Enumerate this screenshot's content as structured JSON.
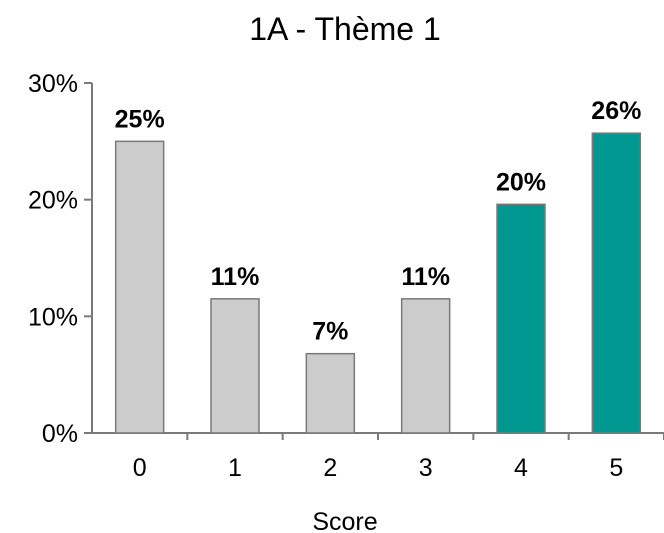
{
  "chart_data": {
    "type": "bar",
    "title": "1A - Thème 1",
    "xlabel": "Score",
    "ylabel": "",
    "categories": [
      "0",
      "1",
      "2",
      "3",
      "4",
      "5"
    ],
    "values": [
      25,
      11.5,
      6.8,
      11.5,
      19.6,
      25.7
    ],
    "data_labels": [
      "25%",
      "11%",
      "7%",
      "11%",
      "20%",
      "26%"
    ],
    "ylim": [
      0,
      30
    ],
    "y_ticks": [
      0,
      10,
      20,
      30
    ],
    "y_tick_labels": [
      "0%",
      "10%",
      "20%",
      "30%"
    ],
    "grid": false,
    "legend": "none",
    "bar_colors": [
      "#cccccc",
      "#cccccc",
      "#cccccc",
      "#cccccc",
      "#009891",
      "#009891"
    ],
    "bar_border_color": "#7a7a7a",
    "axis_color": "#7a7a7a"
  }
}
